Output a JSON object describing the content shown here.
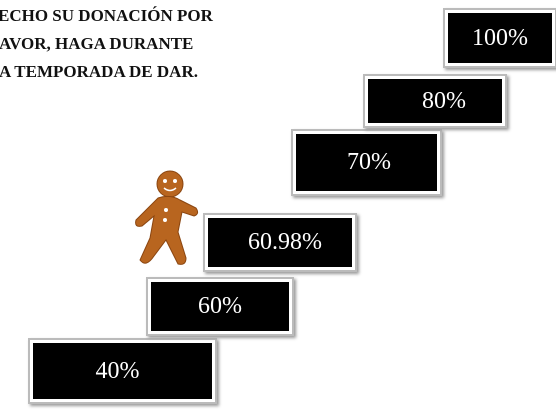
{
  "header": {
    "lines": [
      "ECHO SU DONACIÓN POR",
      "AVOR, HAGA DURANTE",
      "A TEMPORADA DE DAR."
    ]
  },
  "steps": [
    "40%",
    "60%",
    "60.98%",
    "70%",
    "80%",
    "100%"
  ]
}
